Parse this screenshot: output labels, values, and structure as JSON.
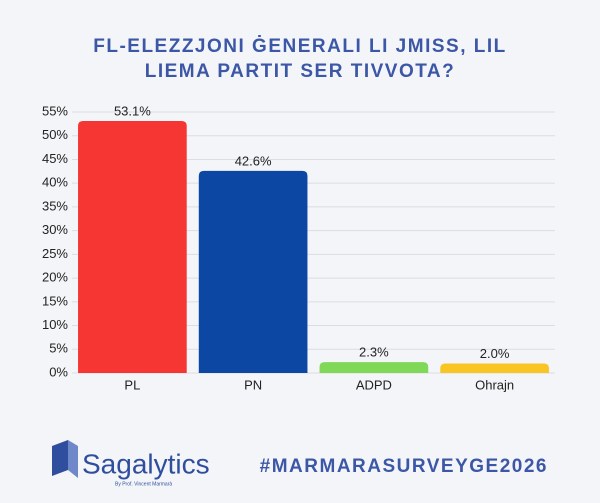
{
  "chart_data": {
    "type": "bar",
    "title": "FL-ELEZZJONI ĠENERALI LI JMISS, LIL LIEMA PARTIT SER TIVVOTA?",
    "categories": [
      "PL",
      "PN",
      "ADPD",
      "Ohrajn"
    ],
    "values": [
      53.1,
      42.6,
      2.3,
      2.0
    ],
    "value_labels": [
      "53.1%",
      "42.6%",
      "2.3%",
      "2.0%"
    ],
    "colors": [
      "#f53632",
      "#0c47a3",
      "#7fd957",
      "#f8c523"
    ],
    "ylim": [
      0,
      55
    ],
    "yticks": [
      {
        "value": 0,
        "label": "0%"
      },
      {
        "value": 5,
        "label": "5%"
      },
      {
        "value": 10,
        "label": "10%"
      },
      {
        "value": 15,
        "label": "15%"
      },
      {
        "value": 20,
        "label": "20%"
      },
      {
        "value": 25,
        "label": "25%"
      },
      {
        "value": 30,
        "label": "30%"
      },
      {
        "value": 35,
        "label": "35%"
      },
      {
        "value": 40,
        "label": "40%"
      },
      {
        "value": 45,
        "label": "45%"
      },
      {
        "value": 50,
        "label": "50%"
      },
      {
        "value": 55,
        "label": "55%"
      }
    ],
    "grid": true
  },
  "footer": {
    "brand": "Sagalytics",
    "byline": "By Prof. Vincent Marmarà",
    "hashtag": "#MARMARASURVEYGE2026"
  }
}
